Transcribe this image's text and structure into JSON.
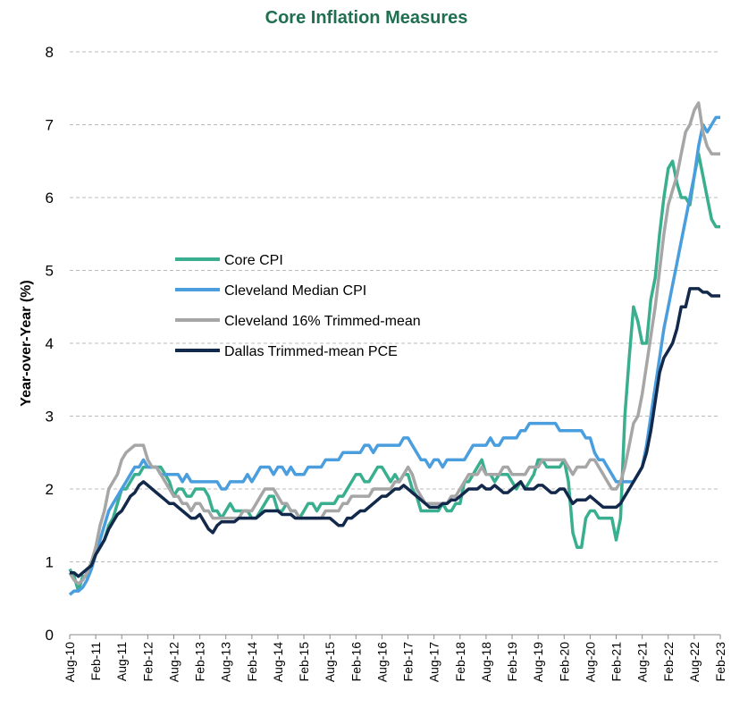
{
  "chart_data": {
    "type": "line",
    "title": "Core Inflation Measures",
    "y_label": "Year-over-Year (%)",
    "categories": [
      "Aug-10",
      null,
      null,
      null,
      null,
      null,
      "Feb-11",
      null,
      null,
      null,
      null,
      null,
      "Aug-11",
      null,
      null,
      null,
      null,
      null,
      "Feb-12",
      null,
      null,
      null,
      null,
      null,
      "Aug-12",
      null,
      null,
      null,
      null,
      null,
      "Feb-13",
      null,
      null,
      null,
      null,
      null,
      "Aug-13",
      null,
      null,
      null,
      null,
      null,
      "Feb-14",
      null,
      null,
      null,
      null,
      null,
      "Aug-14",
      null,
      null,
      null,
      null,
      null,
      "Feb-15",
      null,
      null,
      null,
      null,
      null,
      "Aug-15",
      null,
      null,
      null,
      null,
      null,
      "Feb-16",
      null,
      null,
      null,
      null,
      null,
      "Aug-16",
      null,
      null,
      null,
      null,
      null,
      "Feb-17",
      null,
      null,
      null,
      null,
      null,
      "Aug-17",
      null,
      null,
      null,
      null,
      null,
      "Feb-18",
      null,
      null,
      null,
      null,
      null,
      "Aug-18",
      null,
      null,
      null,
      null,
      null,
      "Feb-19",
      null,
      null,
      null,
      null,
      null,
      "Aug-19",
      null,
      null,
      null,
      null,
      null,
      "Feb-20",
      null,
      null,
      null,
      null,
      null,
      "Aug-20",
      null,
      null,
      null,
      null,
      null,
      "Feb-21",
      null,
      null,
      null,
      null,
      null,
      "Aug-21",
      null,
      null,
      null,
      null,
      null,
      "Feb-22",
      null,
      null,
      null,
      null,
      null,
      "Aug-22",
      null,
      null,
      null,
      null,
      null,
      "Feb-23"
    ],
    "series": [
      {
        "name": "Core CPI",
        "color": "#3aaf8f",
        "values": [
          0.9,
          0.8,
          0.6,
          0.8,
          0.8,
          1.0,
          1.1,
          1.2,
          1.3,
          1.5,
          1.6,
          1.8,
          2.0,
          2.0,
          2.1,
          2.2,
          2.2,
          2.3,
          2.3,
          2.3,
          2.3,
          2.3,
          2.2,
          2.1,
          1.9,
          2.0,
          2.0,
          1.9,
          1.9,
          2.0,
          2.0,
          2.0,
          1.9,
          1.7,
          1.7,
          1.6,
          1.7,
          1.8,
          1.7,
          1.7,
          1.7,
          1.7,
          1.6,
          1.6,
          1.7,
          1.8,
          1.9,
          1.9,
          1.7,
          1.7,
          1.8,
          1.7,
          1.7,
          1.6,
          1.7,
          1.8,
          1.8,
          1.7,
          1.8,
          1.8,
          1.8,
          1.8,
          1.9,
          1.9,
          2.0,
          2.1,
          2.2,
          2.2,
          2.1,
          2.1,
          2.2,
          2.3,
          2.3,
          2.2,
          2.1,
          2.2,
          2.1,
          2.2,
          2.2,
          2.0,
          1.9,
          1.7,
          1.7,
          1.7,
          1.7,
          1.7,
          1.8,
          1.7,
          1.7,
          1.8,
          1.8,
          2.1,
          2.1,
          2.2,
          2.3,
          2.4,
          2.2,
          2.2,
          2.1,
          2.2,
          2.2,
          2.2,
          2.1,
          2.0,
          2.1,
          2.0,
          2.1,
          2.2,
          2.4,
          2.4,
          2.3,
          2.3,
          2.3,
          2.3,
          2.4,
          2.1,
          1.4,
          1.2,
          1.2,
          1.6,
          1.7,
          1.7,
          1.6,
          1.6,
          1.6,
          1.6,
          1.3,
          1.6,
          3.0,
          3.8,
          4.5,
          4.3,
          4.0,
          4.0,
          4.6,
          4.9,
          5.5,
          6.0,
          6.4,
          6.5,
          6.2,
          6.0,
          6.0,
          5.9,
          6.3,
          6.6,
          6.3,
          6.0,
          5.7,
          5.6,
          5.6
        ]
      },
      {
        "name": "Cleveland Median CPI",
        "color": "#4a9ede",
        "values": [
          0.55,
          0.6,
          0.6,
          0.65,
          0.75,
          0.9,
          1.1,
          1.3,
          1.5,
          1.7,
          1.8,
          1.9,
          2.0,
          2.1,
          2.2,
          2.3,
          2.3,
          2.4,
          2.3,
          2.3,
          2.3,
          2.2,
          2.2,
          2.2,
          2.2,
          2.2,
          2.1,
          2.2,
          2.1,
          2.1,
          2.1,
          2.1,
          2.1,
          2.1,
          2.1,
          2.0,
          2.0,
          2.1,
          2.1,
          2.1,
          2.1,
          2.2,
          2.1,
          2.2,
          2.3,
          2.3,
          2.3,
          2.2,
          2.3,
          2.3,
          2.2,
          2.3,
          2.2,
          2.2,
          2.2,
          2.3,
          2.3,
          2.3,
          2.3,
          2.4,
          2.4,
          2.4,
          2.4,
          2.5,
          2.5,
          2.5,
          2.5,
          2.5,
          2.6,
          2.6,
          2.5,
          2.6,
          2.6,
          2.6,
          2.6,
          2.6,
          2.6,
          2.7,
          2.7,
          2.6,
          2.5,
          2.4,
          2.4,
          2.3,
          2.4,
          2.4,
          2.3,
          2.4,
          2.4,
          2.4,
          2.4,
          2.4,
          2.5,
          2.6,
          2.6,
          2.6,
          2.6,
          2.7,
          2.6,
          2.6,
          2.7,
          2.7,
          2.7,
          2.7,
          2.8,
          2.8,
          2.9,
          2.9,
          2.9,
          2.9,
          2.9,
          2.9,
          2.9,
          2.8,
          2.8,
          2.8,
          2.8,
          2.8,
          2.8,
          2.7,
          2.7,
          2.5,
          2.4,
          2.4,
          2.3,
          2.2,
          2.1,
          2.1,
          2.1,
          2.1,
          2.1,
          2.2,
          2.3,
          2.6,
          3.0,
          3.4,
          3.8,
          4.2,
          4.5,
          4.8,
          5.1,
          5.4,
          5.7,
          6.0,
          6.3,
          6.7,
          7.0,
          6.9,
          7.0,
          7.1,
          7.1
        ]
      },
      {
        "name": "Cleveland 16% Trimmed-mean",
        "color": "#a6a6a6",
        "values": [
          0.85,
          0.75,
          0.7,
          0.75,
          0.85,
          1.0,
          1.2,
          1.5,
          1.7,
          2.0,
          2.1,
          2.2,
          2.4,
          2.5,
          2.55,
          2.6,
          2.6,
          2.6,
          2.4,
          2.3,
          2.3,
          2.2,
          2.1,
          2.0,
          1.9,
          1.9,
          1.8,
          1.8,
          1.7,
          1.8,
          1.8,
          1.7,
          1.7,
          1.6,
          1.6,
          1.6,
          1.6,
          1.6,
          1.6,
          1.6,
          1.7,
          1.7,
          1.7,
          1.8,
          1.9,
          2.0,
          2.0,
          2.0,
          1.9,
          1.8,
          1.8,
          1.7,
          1.7,
          1.6,
          1.6,
          1.6,
          1.6,
          1.6,
          1.6,
          1.7,
          1.7,
          1.7,
          1.7,
          1.8,
          1.8,
          1.9,
          1.9,
          1.9,
          1.9,
          1.9,
          2.0,
          2.0,
          2.0,
          2.0,
          2.0,
          2.1,
          2.1,
          2.2,
          2.3,
          2.2,
          2.0,
          1.9,
          1.8,
          1.8,
          1.8,
          1.8,
          1.8,
          1.8,
          1.9,
          1.9,
          2.0,
          2.1,
          2.2,
          2.2,
          2.2,
          2.3,
          2.2,
          2.2,
          2.2,
          2.2,
          2.3,
          2.3,
          2.2,
          2.2,
          2.2,
          2.2,
          2.3,
          2.3,
          2.3,
          2.4,
          2.4,
          2.4,
          2.4,
          2.4,
          2.4,
          2.3,
          2.2,
          2.3,
          2.3,
          2.3,
          2.4,
          2.4,
          2.3,
          2.2,
          2.1,
          2.0,
          2.0,
          2.1,
          2.3,
          2.6,
          2.9,
          3.0,
          3.3,
          3.7,
          4.1,
          4.5,
          5.0,
          5.5,
          5.9,
          6.1,
          6.3,
          6.6,
          6.9,
          7.0,
          7.2,
          7.3,
          6.9,
          6.7,
          6.6,
          6.6,
          6.6
        ]
      },
      {
        "name": "Dallas Trimmed-mean PCE",
        "color": "#13294b",
        "values": [
          0.85,
          0.85,
          0.8,
          0.85,
          0.9,
          0.95,
          1.1,
          1.2,
          1.3,
          1.45,
          1.55,
          1.65,
          1.7,
          1.8,
          1.9,
          1.95,
          2.05,
          2.1,
          2.05,
          2.0,
          1.95,
          1.9,
          1.85,
          1.8,
          1.8,
          1.75,
          1.7,
          1.65,
          1.6,
          1.6,
          1.65,
          1.55,
          1.45,
          1.4,
          1.5,
          1.55,
          1.55,
          1.55,
          1.55,
          1.6,
          1.6,
          1.6,
          1.6,
          1.6,
          1.65,
          1.7,
          1.7,
          1.7,
          1.7,
          1.65,
          1.65,
          1.65,
          1.6,
          1.6,
          1.6,
          1.6,
          1.6,
          1.6,
          1.6,
          1.6,
          1.6,
          1.55,
          1.5,
          1.5,
          1.6,
          1.6,
          1.65,
          1.7,
          1.7,
          1.75,
          1.8,
          1.85,
          1.9,
          1.9,
          1.95,
          2.0,
          2.0,
          2.05,
          2.0,
          1.95,
          1.9,
          1.85,
          1.8,
          1.75,
          1.75,
          1.75,
          1.8,
          1.8,
          1.85,
          1.85,
          1.9,
          1.95,
          2.0,
          2.0,
          2.0,
          2.05,
          2.0,
          2.0,
          2.05,
          2.0,
          1.95,
          1.95,
          2.0,
          2.05,
          2.1,
          2.0,
          2.0,
          2.0,
          2.05,
          2.05,
          2.0,
          1.95,
          1.95,
          2.0,
          2.0,
          1.9,
          1.8,
          1.85,
          1.85,
          1.85,
          1.9,
          1.85,
          1.8,
          1.75,
          1.75,
          1.75,
          1.75,
          1.8,
          1.9,
          2.0,
          2.1,
          2.2,
          2.3,
          2.5,
          2.8,
          3.2,
          3.6,
          3.8,
          3.9,
          4.0,
          4.2,
          4.5,
          4.5,
          4.75,
          4.75,
          4.75,
          4.7,
          4.7,
          4.65,
          4.65,
          4.65
        ]
      }
    ],
    "ylim": [
      0,
      8
    ],
    "yticks": [
      0,
      1,
      2,
      3,
      4,
      5,
      6,
      7,
      8
    ],
    "grid": true
  }
}
